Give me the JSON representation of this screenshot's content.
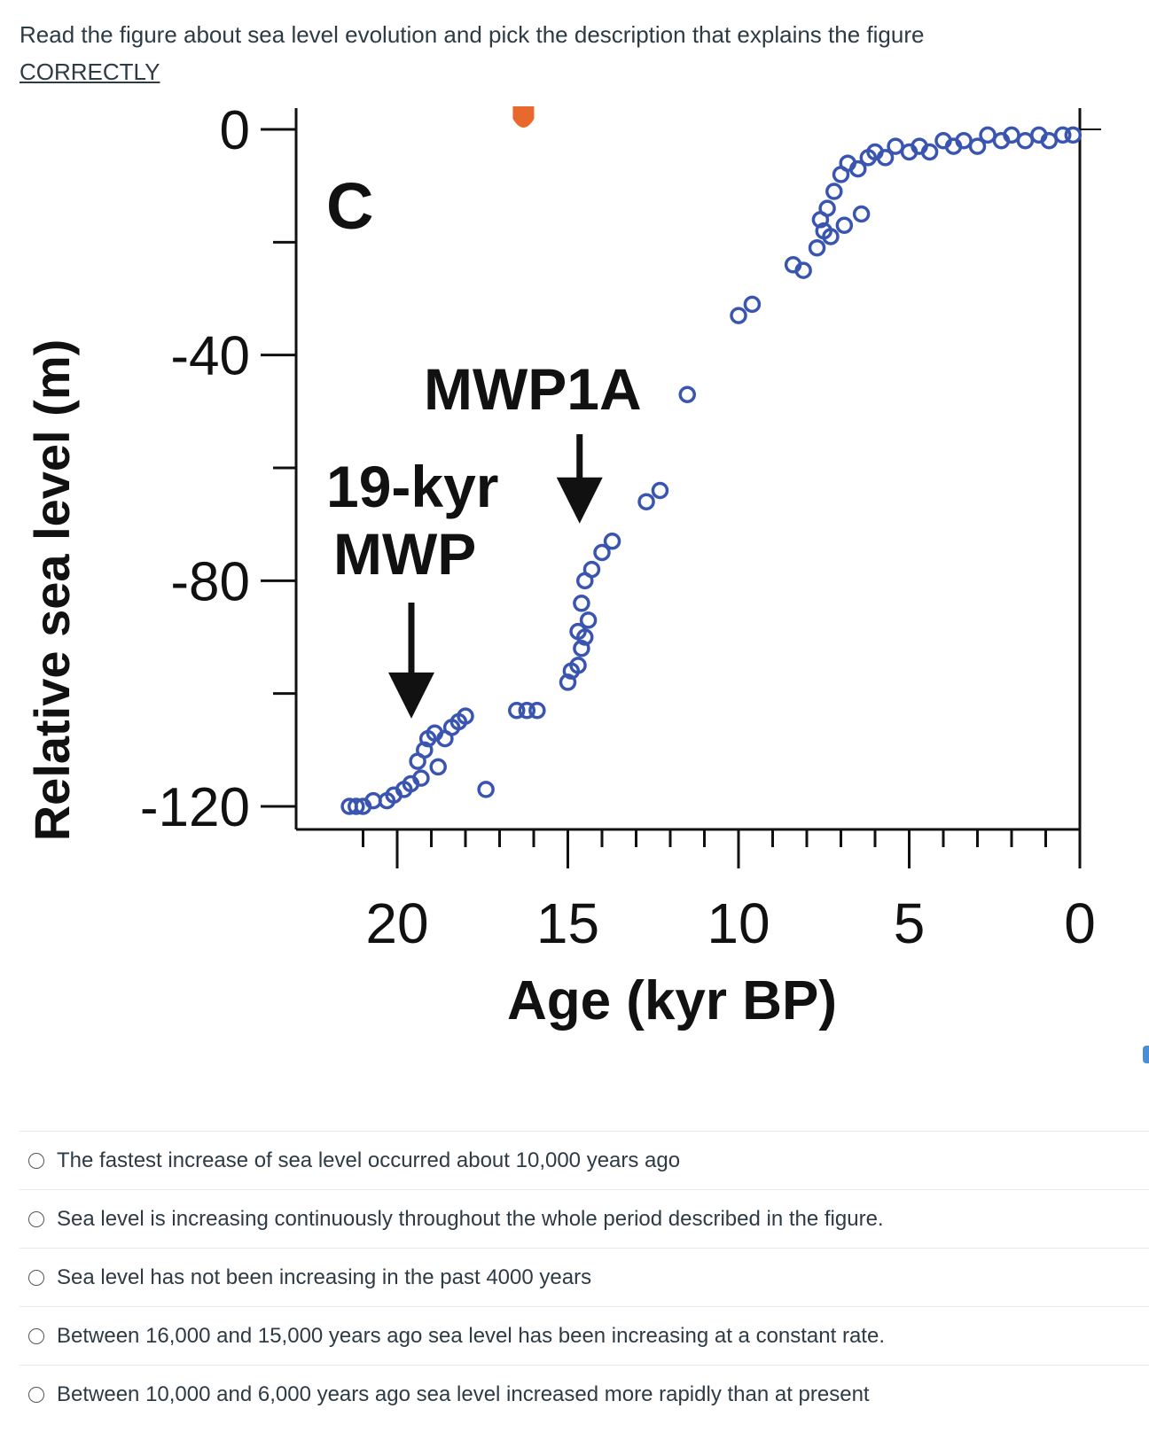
{
  "question": {
    "text": "Read the figure about sea level evolution and pick the description that explains the figure",
    "emphasis": "CORRECTLY"
  },
  "colors": {
    "data_points": "#3a55b0",
    "marker": "#e8692e",
    "arrows": "#111111",
    "text": "#2d3b45"
  },
  "chart_data": {
    "type": "scatter",
    "panel_label": "C",
    "xlabel": "Age (kyr BP)",
    "ylabel": "Relative sea level (m)",
    "xlim": [
      21.5,
      0
    ],
    "ylim": [
      -125,
      0
    ],
    "x_ticks": [
      20,
      15,
      10,
      5,
      0
    ],
    "y_ticks": [
      0,
      -40,
      -80,
      -120
    ],
    "grid": false,
    "annotations": [
      {
        "text": "19-kyr\nMWP",
        "arrow_x": 20.0,
        "arrow_y": -106
      },
      {
        "text": "MWP1A",
        "arrow_x": 14.5,
        "arrow_y": -73
      }
    ],
    "series": [
      {
        "points": [
          [
            21.4,
            -120
          ],
          [
            21.2,
            -120
          ],
          [
            21.0,
            -120
          ],
          [
            20.7,
            -119
          ],
          [
            20.3,
            -119
          ],
          [
            20.1,
            -118
          ],
          [
            19.8,
            -117
          ],
          [
            19.6,
            -116
          ],
          [
            19.4,
            -112
          ],
          [
            19.2,
            -110
          ],
          [
            19.1,
            -108
          ],
          [
            18.9,
            -107
          ],
          [
            18.6,
            -108
          ],
          [
            18.4,
            -106
          ],
          [
            18.2,
            -105
          ],
          [
            18.0,
            -104
          ],
          [
            19.3,
            -115
          ],
          [
            18.8,
            -113
          ],
          [
            17.4,
            -117
          ],
          [
            16.5,
            -103
          ],
          [
            16.2,
            -103
          ],
          [
            15.9,
            -103
          ],
          [
            15.0,
            -98
          ],
          [
            14.9,
            -96
          ],
          [
            14.7,
            -95
          ],
          [
            14.6,
            -92
          ],
          [
            14.5,
            -90
          ],
          [
            14.7,
            -89
          ],
          [
            14.4,
            -87
          ],
          [
            14.6,
            -84
          ],
          [
            14.5,
            -80
          ],
          [
            14.3,
            -78
          ],
          [
            14.0,
            -75
          ],
          [
            13.7,
            -73
          ],
          [
            12.7,
            -66
          ],
          [
            12.3,
            -64
          ],
          [
            11.5,
            -47
          ],
          [
            10.0,
            -33
          ],
          [
            9.6,
            -31
          ],
          [
            8.4,
            -24
          ],
          [
            8.1,
            -25
          ],
          [
            7.7,
            -21
          ],
          [
            7.5,
            -18
          ],
          [
            7.4,
            -14
          ],
          [
            7.2,
            -11
          ],
          [
            7.6,
            -16
          ],
          [
            7.3,
            -19
          ],
          [
            6.9,
            -17
          ],
          [
            6.4,
            -15
          ],
          [
            7.0,
            -8
          ],
          [
            6.8,
            -6
          ],
          [
            6.5,
            -7
          ],
          [
            6.2,
            -5
          ],
          [
            6.0,
            -4
          ],
          [
            5.7,
            -5
          ],
          [
            5.4,
            -3
          ],
          [
            5.0,
            -4
          ],
          [
            4.7,
            -3
          ],
          [
            4.4,
            -4
          ],
          [
            4.0,
            -2
          ],
          [
            3.7,
            -3
          ],
          [
            3.4,
            -2
          ],
          [
            3.0,
            -3
          ],
          [
            2.7,
            -1
          ],
          [
            2.3,
            -2
          ],
          [
            2.0,
            -1
          ],
          [
            1.6,
            -2
          ],
          [
            1.2,
            -1
          ],
          [
            0.9,
            -2
          ],
          [
            0.5,
            -1
          ],
          [
            0.2,
            -1
          ]
        ]
      }
    ],
    "marker_at_top_x": 16.3
  },
  "answers": [
    "The fastest increase of sea level occurred about 10,000 years ago",
    "Sea level is increasing continuously throughout the whole period described in the figure.",
    "Sea level has not been increasing in the past 4000 years",
    "Between 16,000 and 15,000 years ago sea level has been increasing at a constant rate.",
    "Between 10,000 and 6,000 years ago sea level increased more rapidly than at present"
  ]
}
